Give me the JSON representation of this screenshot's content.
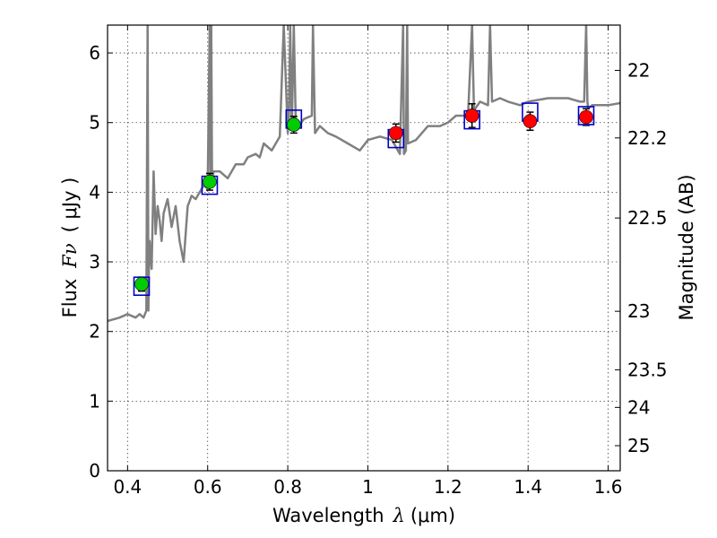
{
  "chart_data": {
    "type": "scatter",
    "xlabel": "Wavelength",
    "xlabel_symbol": "λ",
    "xlabel_unit": "(μm)",
    "ylabel": "Flux",
    "ylabel_symbol": "Fν",
    "ylabel_unit": "( μJy )",
    "y2label": "Magnitude (AB)",
    "xlim": [
      0.35,
      1.63
    ],
    "ylim": [
      0,
      6.4
    ],
    "grid": true,
    "x_ticks": [
      0.4,
      0.6,
      0.8,
      1.0,
      1.2,
      1.4,
      1.6
    ],
    "x_tick_labels": [
      "0.4",
      "0.6",
      "0.8",
      "1",
      "1.2",
      "1.4",
      "1.6"
    ],
    "y_ticks": [
      0,
      1,
      2,
      3,
      4,
      5,
      6
    ],
    "y_tick_labels": [
      "0",
      "1",
      "2",
      "3",
      "4",
      "5",
      "6"
    ],
    "y2_ticks": [
      {
        "label": "22",
        "flux": 5.75
      },
      {
        "label": "22.2",
        "flux": 4.78
      },
      {
        "label": "22.5",
        "flux": 3.63
      },
      {
        "label": "23",
        "flux": 2.29
      },
      {
        "label": "23.5",
        "flux": 1.45
      },
      {
        "label": "24",
        "flux": 0.91
      },
      {
        "label": "25",
        "flux": 0.36
      }
    ],
    "colors": {
      "spectrum": "#808080",
      "optical": "#00cc00",
      "nir": "#ff0000",
      "model": "#0000cc",
      "errorbar": "#000000",
      "grid": "#444444"
    },
    "series": [
      {
        "name": "model spectrum",
        "kind": "line",
        "x": [
          0.35,
          0.38,
          0.4,
          0.42,
          0.43,
          0.44,
          0.447,
          0.45,
          0.452,
          0.453,
          0.455,
          0.46,
          0.465,
          0.47,
          0.475,
          0.48,
          0.485,
          0.49,
          0.5,
          0.51,
          0.52,
          0.53,
          0.54,
          0.55,
          0.56,
          0.57,
          0.58,
          0.59,
          0.6,
          0.605,
          0.607,
          0.609,
          0.611,
          0.615,
          0.63,
          0.65,
          0.67,
          0.69,
          0.7,
          0.72,
          0.73,
          0.74,
          0.76,
          0.78,
          0.79,
          0.8,
          0.803,
          0.806,
          0.81,
          0.815,
          0.82,
          0.823,
          0.828,
          0.84,
          0.86,
          0.863,
          0.868,
          0.88,
          0.9,
          0.92,
          0.95,
          0.98,
          1.0,
          1.03,
          1.06,
          1.08,
          1.088,
          1.09,
          1.095,
          1.098,
          1.1,
          1.12,
          1.15,
          1.18,
          1.2,
          1.22,
          1.25,
          1.26,
          1.265,
          1.268,
          1.28,
          1.3,
          1.305,
          1.31,
          1.33,
          1.35,
          1.38,
          1.4,
          1.45,
          1.5,
          1.53,
          1.54,
          1.545,
          1.548,
          1.55,
          1.56,
          1.58,
          1.6,
          1.63
        ],
        "y": [
          2.15,
          2.2,
          2.25,
          2.2,
          2.25,
          2.2,
          2.3,
          6.4,
          2.3,
          2.8,
          3.3,
          2.9,
          4.3,
          3.4,
          3.8,
          3.6,
          3.3,
          3.7,
          3.9,
          3.5,
          3.8,
          3.3,
          3.0,
          3.8,
          3.95,
          3.9,
          4.0,
          4.1,
          4.05,
          6.4,
          4.1,
          6.4,
          4.15,
          4.3,
          4.3,
          4.2,
          4.4,
          4.4,
          4.5,
          4.55,
          4.5,
          4.7,
          4.6,
          4.8,
          6.4,
          4.85,
          5.1,
          6.4,
          4.9,
          6.4,
          5.0,
          5.0,
          4.95,
          5.05,
          5.1,
          6.4,
          4.85,
          4.95,
          4.85,
          4.8,
          4.7,
          4.6,
          4.75,
          4.8,
          4.75,
          4.55,
          6.4,
          4.55,
          4.6,
          6.4,
          4.7,
          4.75,
          4.95,
          4.95,
          5.0,
          5.1,
          5.1,
          6.4,
          5.15,
          5.2,
          5.3,
          5.25,
          6.4,
          5.3,
          5.35,
          5.3,
          5.25,
          5.3,
          5.35,
          5.35,
          5.3,
          5.3,
          6.4,
          5.3,
          5.2,
          5.25,
          5.25,
          5.25,
          5.28
        ]
      },
      {
        "name": "optical photometry",
        "kind": "points",
        "color": "#00cc00",
        "x": [
          0.435,
          0.605,
          0.815
        ],
        "y": [
          2.68,
          4.15,
          4.97
        ],
        "yerr": [
          0.1,
          0.12,
          0.12
        ]
      },
      {
        "name": "near-infrared photometry",
        "kind": "points",
        "color": "#ff0000",
        "x": [
          1.07,
          1.26,
          1.405,
          1.545
        ],
        "y": [
          4.85,
          5.1,
          5.02,
          5.08
        ],
        "yerr": [
          0.13,
          0.17,
          0.13,
          0.12
        ]
      },
      {
        "name": "model band fluxes",
        "kind": "squares",
        "color": "#0000cc",
        "x": [
          0.435,
          0.605,
          0.815,
          1.07,
          1.26,
          1.405,
          1.545
        ],
        "y": [
          2.65,
          4.1,
          5.05,
          4.77,
          5.04,
          5.15,
          5.1
        ]
      }
    ]
  }
}
